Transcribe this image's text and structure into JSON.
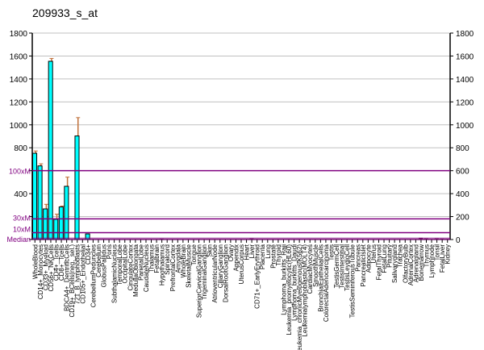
{
  "chart_data": {
    "type": "bar",
    "title": "209933_s_at",
    "ylim": [
      0,
      1800
    ],
    "yticks": [
      0,
      200,
      400,
      600,
      800,
      1000,
      1200,
      1400,
      1600,
      1800
    ],
    "grid": true,
    "bar_color": "#00FFFF",
    "error_color": "#C0703A",
    "reference_color": "#800080",
    "reference_lines": [
      {
        "label": "100xM",
        "value": 600
      },
      {
        "label": "30xM",
        "value": 180
      },
      {
        "label": "10xM",
        "value": 60
      },
      {
        "label": "Median",
        "value": 6
      }
    ],
    "categories": [
      "WholeBlood",
      "CD14+_Monocytes",
      "CD33+_Myeloid",
      "CD56+_NKCells",
      "CD4+_Tcells",
      "CD8+_Tcells",
      "BDCA4+_DentriticCells",
      "CD19+_BCells(neg._sel.)",
      "721_B_lymphoblasts",
      "CD105+_Endothelial",
      "CD34+",
      "CerebellumPeduncles",
      "Cerebellum",
      "GlobusPallidus",
      "Pons",
      "SubthalamicNucleus",
      "TemporalLobe",
      "OccipitalLobe",
      "CingulateCortex",
      "MedullaOblongata",
      "ParietalLobe",
      "CaudateNucleus",
      "Thalamus",
      "Fetalbrain",
      "Hypothalamus",
      "Spinalcord",
      "PrefrontalCortex",
      "Amygdala",
      "WholeBrain",
      "SkeletalMuscle",
      "Tongue",
      "SuperiorCervicalGanglion",
      "TrigeminalGanglion",
      "Skin",
      "AtrioventricularNode",
      "CiliaryGanglion",
      "DorsalRootGanglion",
      "Ovary",
      "Appendix",
      "UterusCorpus",
      "Heart",
      "Liver",
      "CD71+_EarlyErythroid",
      "Placenta",
      "Lung",
      "Prostate",
      "Thyroid",
      "Lymphoma_burkitts_Raji",
      "Leukemia_promyelocytic(HL60)",
      "Lymphoma_burkitts_Daudi",
      "Leukemia_chronicMyelogenous(K562)",
      "Leukemialymphoblastic(MOLT4)",
      "CardiacMyocytes",
      "SmoothMuscle",
      "BronchialEpithelialCells",
      "ColorectalAdenocarcinoma",
      "Testis",
      "TestisGermCell",
      "TestisInterstitial",
      "TestisLeydigCell",
      "TestisSeminiferousTubule",
      "Pancreas",
      "PancreaticIslet",
      "Adipocyte",
      "Uterus",
      "FetalThyroid",
      "FetalLung",
      "Pituitary",
      "Salivarygland",
      "Trachea",
      "OlfactoryBulb",
      "AdrenalCortex",
      "Adrenalgland",
      "Bonemarrow",
      "Thymus",
      "Lymphnode",
      "Tonsil",
      "FetalLiver",
      "Kidney"
    ],
    "values": [
      752,
      642,
      267,
      1554,
      176,
      284,
      464,
      3,
      903,
      6,
      49,
      5,
      5,
      5,
      5,
      5,
      5,
      5,
      5,
      5,
      5,
      5,
      5,
      5,
      8,
      5,
      5,
      5,
      5,
      5,
      5,
      5,
      5,
      5,
      5,
      5,
      5,
      5,
      5,
      5,
      5,
      10,
      5,
      5,
      5,
      5,
      5,
      5,
      5,
      5,
      5,
      5,
      5,
      5,
      5,
      5,
      5,
      5,
      5,
      5,
      5,
      5,
      5,
      5,
      5,
      5,
      5,
      5,
      5,
      5,
      5,
      5,
      5,
      15,
      10,
      5,
      10,
      8,
      6
    ],
    "errors": [
      20,
      18,
      40,
      25,
      45,
      8,
      80,
      0,
      160,
      0,
      0,
      0,
      0,
      0,
      0,
      0,
      0,
      0,
      0,
      0,
      0,
      0,
      0,
      0,
      0,
      0,
      0,
      0,
      0,
      0,
      0,
      0,
      0,
      0,
      0,
      0,
      0,
      0,
      0,
      0,
      0,
      0,
      0,
      0,
      0,
      0,
      0,
      0,
      0,
      0,
      0,
      0,
      0,
      0,
      0,
      0,
      0,
      0,
      0,
      0,
      0,
      0,
      0,
      0,
      0,
      0,
      0,
      0,
      0,
      0,
      0,
      0,
      0,
      0,
      0,
      0,
      0,
      0,
      0
    ]
  }
}
